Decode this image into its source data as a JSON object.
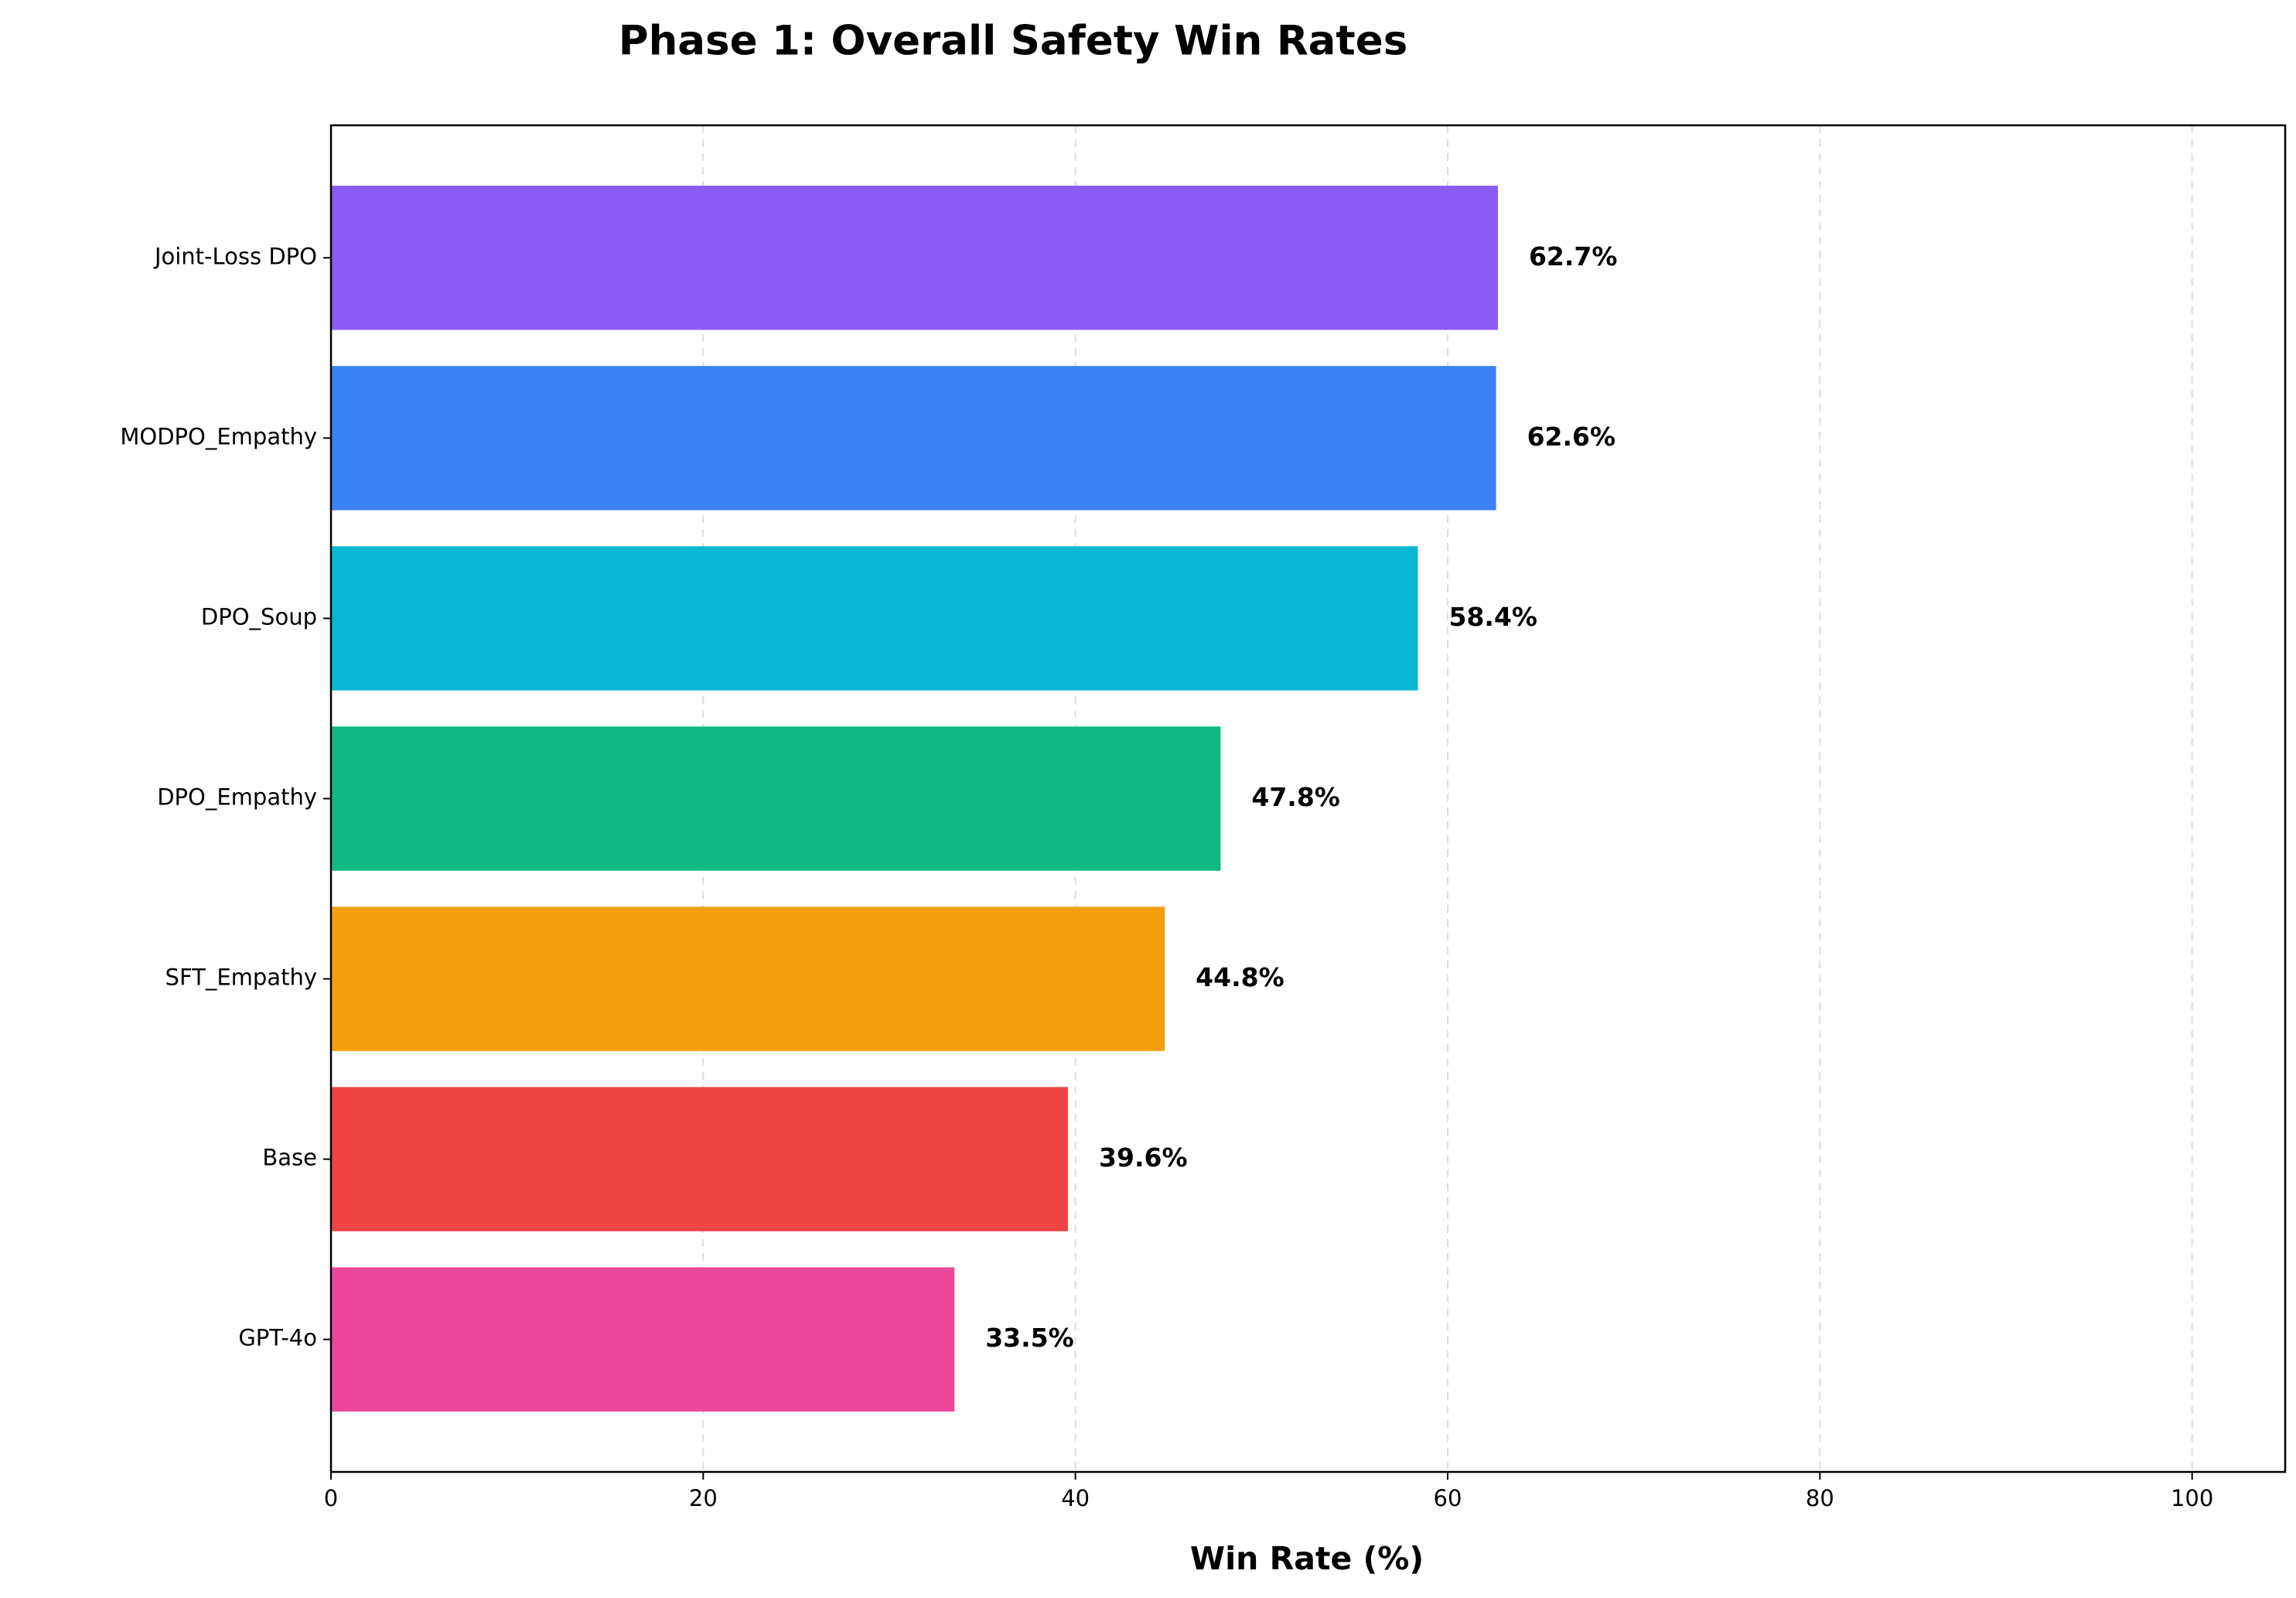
{
  "chart_data": {
    "type": "barh",
    "title": "Phase 1: Overall Safety Win Rates",
    "x_label": "Win Rate (%)",
    "categories": [
      "Joint-Loss DPO",
      "MODPO_Empathy",
      "DPO_Soup",
      "DPO_Empathy",
      "SFT_Empathy",
      "Base",
      "GPT-4o"
    ],
    "values": [
      62.7,
      62.6,
      58.4,
      47.8,
      44.8,
      39.6,
      33.5
    ],
    "value_labels": [
      "62.7%",
      "62.6%",
      "58.4%",
      "47.8%",
      "44.8%",
      "39.6%",
      "33.5%"
    ],
    "colors": [
      "#8b5cf6",
      "#3b82f6",
      "#06b6d4",
      "#10b981",
      "#f59e0b",
      "#ef4444",
      "#ec4899"
    ],
    "xlim": [
      0,
      105
    ],
    "xticks": [
      0,
      20,
      40,
      60,
      80,
      100
    ],
    "grid": true
  }
}
